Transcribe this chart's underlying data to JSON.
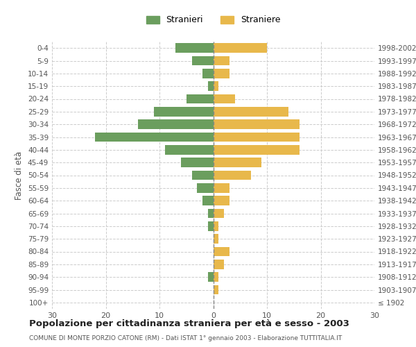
{
  "age_groups": [
    "100+",
    "95-99",
    "90-94",
    "85-89",
    "80-84",
    "75-79",
    "70-74",
    "65-69",
    "60-64",
    "55-59",
    "50-54",
    "45-49",
    "40-44",
    "35-39",
    "30-34",
    "25-29",
    "20-24",
    "15-19",
    "10-14",
    "5-9",
    "0-4"
  ],
  "birth_years": [
    "≤ 1902",
    "1903-1907",
    "1908-1912",
    "1913-1917",
    "1918-1922",
    "1923-1927",
    "1928-1932",
    "1933-1937",
    "1938-1942",
    "1943-1947",
    "1948-1952",
    "1953-1957",
    "1958-1962",
    "1963-1967",
    "1968-1972",
    "1973-1977",
    "1978-1982",
    "1983-1987",
    "1988-1992",
    "1993-1997",
    "1998-2002"
  ],
  "males": [
    0,
    0,
    1,
    0,
    0,
    0,
    1,
    1,
    2,
    3,
    4,
    6,
    9,
    22,
    14,
    11,
    5,
    1,
    2,
    4,
    7
  ],
  "females": [
    0,
    1,
    1,
    2,
    3,
    1,
    1,
    2,
    3,
    3,
    7,
    9,
    16,
    16,
    16,
    14,
    4,
    1,
    3,
    3,
    10
  ],
  "color_male": "#6b9e5e",
  "color_female": "#e8b84b",
  "xlim": 30,
  "title": "Popolazione per cittadinanza straniera per età e sesso - 2003",
  "subtitle": "COMUNE DI MONTE PORZIO CATONE (RM) - Dati ISTAT 1° gennaio 2003 - Elaborazione TUTTITALIA.IT",
  "ylabel_left": "Fasce di età",
  "legend_male": "Stranieri",
  "legend_female": "Straniere",
  "background_color": "#ffffff",
  "grid_color": "#cccccc"
}
